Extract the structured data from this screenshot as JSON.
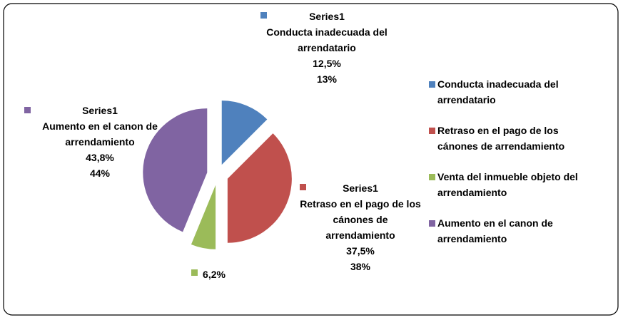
{
  "chart_data": {
    "type": "pie",
    "series_name": "Series1",
    "categories": [
      "Conducta inadecuada del arrendatario",
      "Retraso en el pago de los cánones de arrendamiento",
      "Venta del inmueble objeto del arrendamiento",
      "Aumento en el canon de arrendamiento"
    ],
    "values": [
      12.5,
      37.5,
      6.2,
      43.8
    ],
    "value_labels": [
      "12,5%",
      "37,5%",
      "6,2%",
      "43,8%"
    ],
    "percent_labels": [
      "13%",
      "38%",
      null,
      "44%"
    ],
    "colors": [
      "#4f81bd",
      "#c0504d",
      "#9bbb59",
      "#8064a2"
    ],
    "legend": "right"
  }
}
